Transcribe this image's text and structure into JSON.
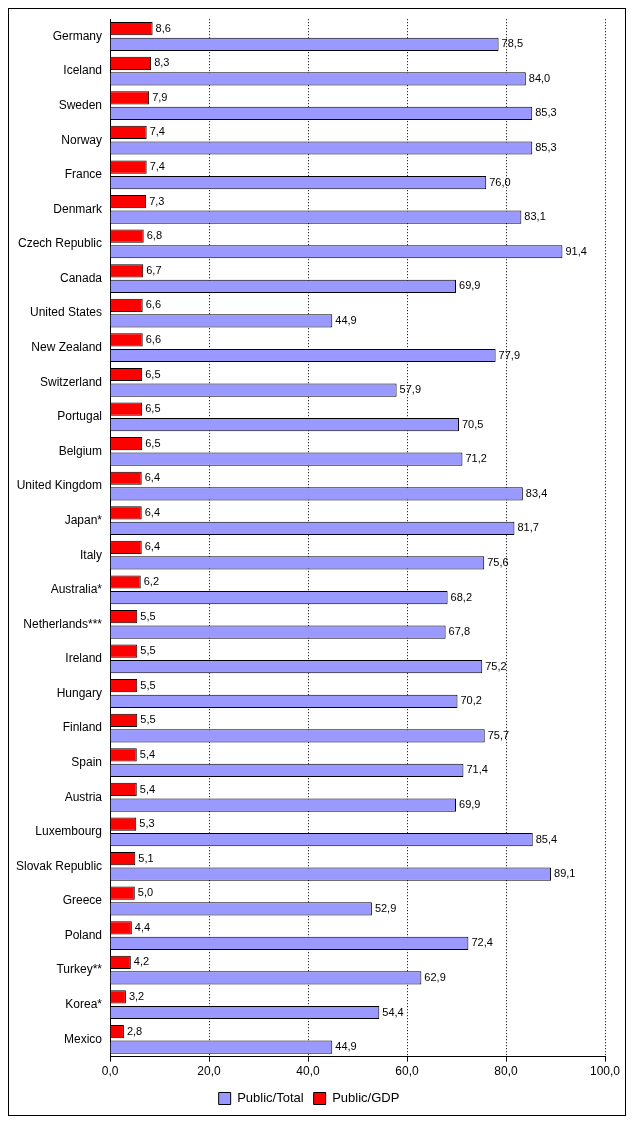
{
  "chart_data": {
    "type": "bar",
    "orientation": "horizontal",
    "categories": [
      "Germany",
      "Iceland",
      "Sweden",
      "Norway",
      "France",
      "Denmark",
      "Czech Republic",
      "Canada",
      "United States",
      "New Zealand",
      "Switzerland",
      "Portugal",
      "Belgium",
      "United Kingdom",
      "Japan*",
      "Italy",
      "Australia*",
      "Netherlands***",
      "Ireland",
      "Hungary",
      "Finland",
      "Spain",
      "Austria",
      "Luxembourg",
      "Slovak Republic",
      "Greece",
      "Poland",
      "Turkey**",
      "Korea*",
      "Mexico"
    ],
    "series": [
      {
        "name": "Public/GDP",
        "color": "#ff0000",
        "values": [
          8.6,
          8.3,
          7.9,
          7.4,
          7.4,
          7.3,
          6.8,
          6.7,
          6.6,
          6.6,
          6.5,
          6.5,
          6.5,
          6.4,
          6.4,
          6.4,
          6.2,
          5.5,
          5.5,
          5.5,
          5.5,
          5.4,
          5.4,
          5.3,
          5.1,
          5.0,
          4.4,
          4.2,
          3.2,
          2.8
        ],
        "value_labels": [
          "8,6",
          "8,3",
          "7,9",
          "7,4",
          "7,4",
          "7,3",
          "6,8",
          "6,7",
          "6,6",
          "6,6",
          "6,5",
          "6,5",
          "6,5",
          "6,4",
          "6,4",
          "6,4",
          "6,2",
          "5,5",
          "5,5",
          "5,5",
          "5,5",
          "5,4",
          "5,4",
          "5,3",
          "5,1",
          "5,0",
          "4,4",
          "4,2",
          "3,2",
          "2,8"
        ]
      },
      {
        "name": "Public/Total",
        "color": "#9999ff",
        "values": [
          78.5,
          84.0,
          85.3,
          85.3,
          76.0,
          83.1,
          91.4,
          69.9,
          44.9,
          77.9,
          57.9,
          70.5,
          71.2,
          83.4,
          81.7,
          75.6,
          68.2,
          67.8,
          75.2,
          70.2,
          75.7,
          71.4,
          69.9,
          85.4,
          89.1,
          52.9,
          72.4,
          62.9,
          54.4,
          44.9
        ],
        "value_labels": [
          "78,5",
          "84,0",
          "85,3",
          "85,3",
          "76,0",
          "83,1",
          "91,4",
          "69,9",
          "44,9",
          "77,9",
          "57,9",
          "70,5",
          "71,2",
          "83,4",
          "81,7",
          "75,6",
          "68,2",
          "67,8",
          "75,2",
          "70,2",
          "75,7",
          "71,4",
          "69,9",
          "85,4",
          "89,1",
          "52,9",
          "72,4",
          "62,9",
          "54,4",
          "44,9"
        ]
      }
    ],
    "xlim": [
      0,
      100
    ],
    "xticks": [
      {
        "value": 0,
        "label": "0,0"
      },
      {
        "value": 20,
        "label": "20,0"
      },
      {
        "value": 40,
        "label": "40,0"
      },
      {
        "value": 60,
        "label": "60,0"
      },
      {
        "value": 80,
        "label": "80,0"
      },
      {
        "value": 100,
        "label": "100,0"
      }
    ],
    "grid": "x",
    "legend": "bottom"
  }
}
